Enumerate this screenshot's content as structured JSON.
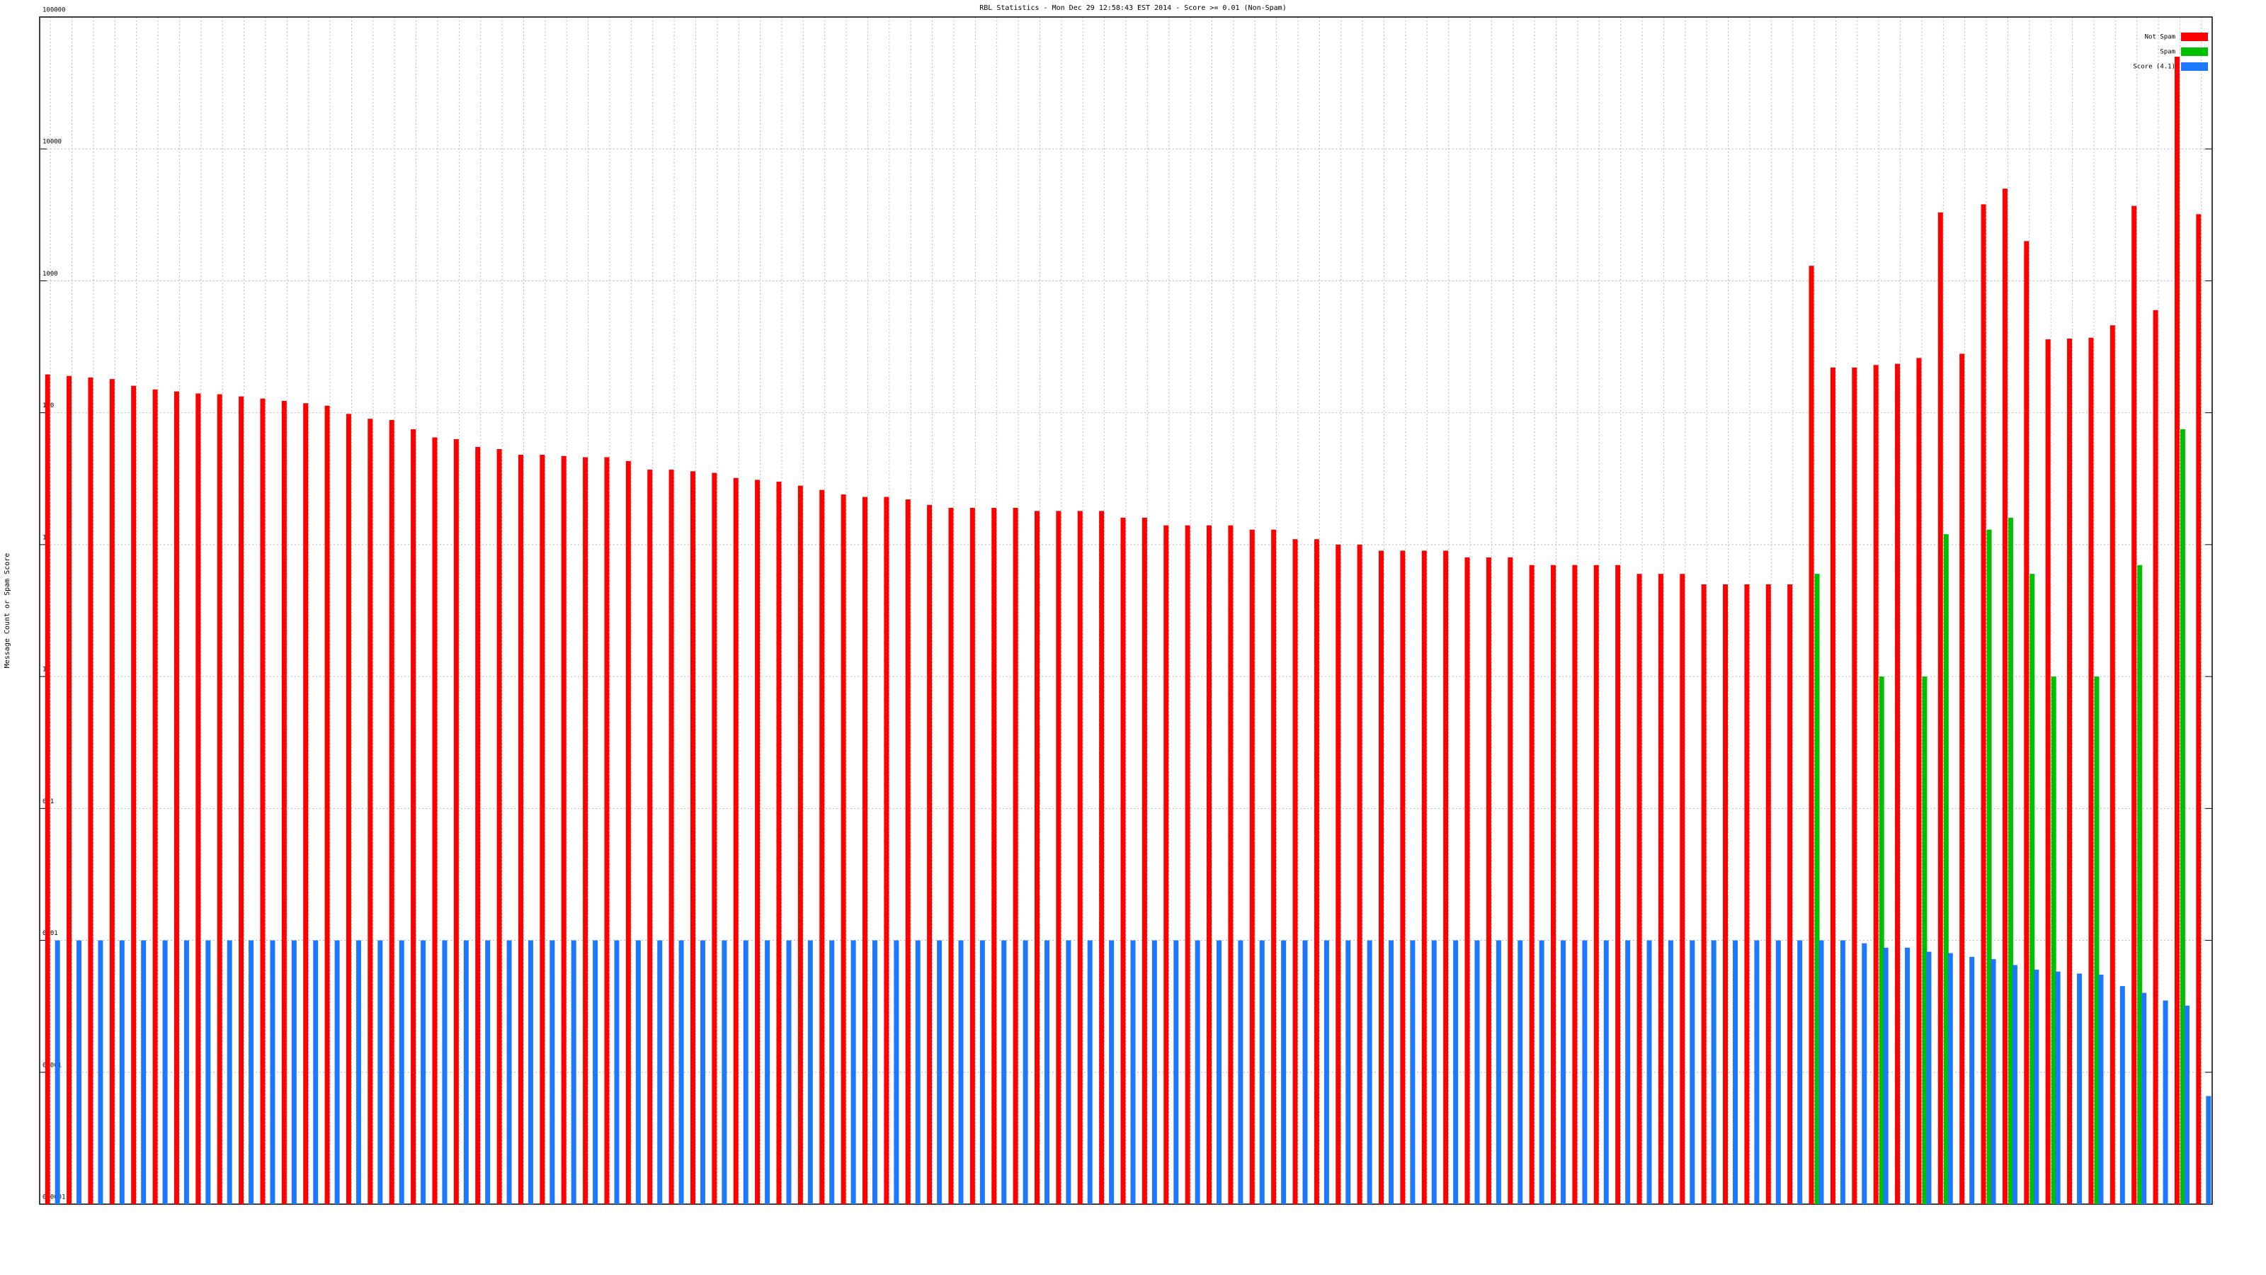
{
  "chart_data": {
    "type": "bar",
    "title": "RBL Statistics - Mon Dec 29 12:58:43 EST 2014 - Score >= 0.01 (Non-Spam)",
    "y_label": "Message Count or Spam Score",
    "log_scale": true,
    "grid": true,
    "legend": "top-right",
    "categories": [
      null,
      null,
      null,
      null,
      null,
      null,
      null,
      null,
      null,
      null,
      null,
      null,
      null,
      null,
      null,
      null,
      null,
      null,
      null,
      null,
      null,
      null,
      null,
      null,
      null,
      null,
      null,
      null,
      null,
      null,
      null,
      null,
      null,
      null,
      null,
      null,
      null,
      null,
      null,
      null,
      null,
      null,
      null,
      null,
      null,
      null,
      null,
      null,
      null,
      null,
      null,
      null,
      null,
      null,
      null,
      null,
      null,
      null,
      null,
      null,
      null,
      null,
      null,
      null,
      null,
      null,
      null,
      null,
      null,
      null,
      null,
      null,
      null,
      null,
      null,
      null,
      null,
      null,
      null,
      null,
      null,
      null,
      null,
      null,
      null,
      null,
      null,
      null,
      null,
      null,
      null,
      null,
      null,
      null,
      null,
      null,
      null,
      null,
      null,
      null,
      null
    ],
    "series": [
      {
        "name": "Not Spam",
        "color": "#ff0000",
        "values": [
          195,
          190,
          185,
          180,
          160,
          150,
          145,
          140,
          138,
          133,
          128,
          123,
          118,
          113,
          98,
          90,
          88,
          75,
          65,
          63,
          55,
          53,
          48,
          48,
          47,
          46,
          46,
          43,
          37,
          37,
          36,
          35,
          32,
          31,
          30,
          28,
          26,
          24,
          23,
          23,
          22,
          20,
          19,
          19,
          19,
          19,
          18,
          18,
          18,
          18,
          16,
          16,
          14,
          14,
          14,
          14,
          13,
          13,
          11,
          11,
          10,
          10,
          9,
          9,
          9,
          9,
          8,
          8,
          8,
          7,
          7,
          7,
          7,
          7,
          6,
          6,
          6,
          5,
          5,
          5,
          5,
          5,
          1300,
          220,
          220,
          230,
          235,
          260,
          3300,
          280,
          3800,
          5000,
          2000,
          360,
          365,
          370,
          460,
          3700,
          600,
          50000,
          3200
        ]
      },
      {
        "name": "Spam",
        "color": "#00c000",
        "values": [
          null,
          null,
          null,
          null,
          null,
          null,
          null,
          null,
          null,
          null,
          null,
          null,
          null,
          null,
          null,
          null,
          null,
          null,
          null,
          null,
          null,
          null,
          null,
          null,
          null,
          null,
          null,
          null,
          null,
          null,
          null,
          null,
          null,
          null,
          null,
          null,
          null,
          null,
          null,
          null,
          null,
          null,
          null,
          null,
          null,
          null,
          null,
          null,
          null,
          null,
          null,
          null,
          null,
          null,
          null,
          null,
          null,
          null,
          null,
          null,
          null,
          null,
          null,
          null,
          null,
          null,
          null,
          null,
          null,
          null,
          null,
          null,
          null,
          null,
          null,
          null,
          null,
          null,
          null,
          null,
          null,
          null,
          6,
          null,
          null,
          1,
          null,
          1,
          12,
          null,
          13,
          16,
          6,
          1,
          null,
          1,
          null,
          7,
          null,
          75,
          null
        ]
      },
      {
        "name": "Score (4.1)",
        "color": "#1e78ff",
        "values": [
          0.01,
          0.01,
          0.01,
          0.01,
          0.01,
          0.01,
          0.01,
          0.01,
          0.01,
          0.01,
          0.01,
          0.01,
          0.01,
          0.01,
          0.01,
          0.01,
          0.01,
          0.01,
          0.01,
          0.01,
          0.01,
          0.01,
          0.01,
          0.01,
          0.01,
          0.01,
          0.01,
          0.01,
          0.01,
          0.01,
          0.01,
          0.01,
          0.01,
          0.01,
          0.01,
          0.01,
          0.01,
          0.01,
          0.01,
          0.01,
          0.01,
          0.01,
          0.01,
          0.01,
          0.01,
          0.01,
          0.01,
          0.01,
          0.01,
          0.01,
          0.01,
          0.01,
          0.01,
          0.01,
          0.01,
          0.01,
          0.01,
          0.01,
          0.01,
          0.01,
          0.01,
          0.01,
          0.01,
          0.01,
          0.01,
          0.01,
          0.01,
          0.01,
          0.01,
          0.01,
          0.01,
          0.01,
          0.01,
          0.01,
          0.01,
          0.01,
          0.01,
          0.01,
          0.01,
          0.01,
          0.01,
          0.01,
          0.01,
          0.01,
          0.0095,
          0.0088,
          0.0088,
          0.0082,
          0.008,
          0.0075,
          0.0072,
          0.0065,
          0.006,
          0.0058,
          0.0056,
          0.0055,
          0.0045,
          0.004,
          0.0035,
          0.0032,
          0.00066
        ]
      }
    ],
    "ylim": [
      0.0001,
      100000
    ],
    "yticks": [
      0.0001,
      0.001,
      0.01,
      0.1,
      1,
      10,
      100,
      1000,
      10000,
      100000
    ]
  }
}
